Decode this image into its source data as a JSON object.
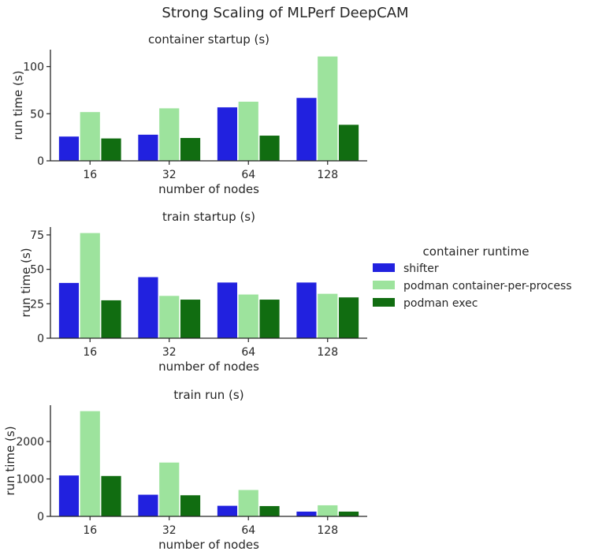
{
  "suptitle": "Strong Scaling of MLPerf DeepCAM",
  "legend": {
    "title": "container runtime",
    "placement": "right",
    "entries": [
      "shifter",
      "podman container-per-process",
      "podman exec"
    ]
  },
  "colors": {
    "shifter": "#2121df",
    "podman container-per-process": "#9de39d",
    "podman exec": "#116d11"
  },
  "chart_data": [
    {
      "type": "bar",
      "title": "container startup (s)",
      "xlabel": "number of nodes",
      "ylabel": "run time (s)",
      "categories": [
        "16",
        "32",
        "64",
        "128"
      ],
      "ylim": [
        0,
        118
      ],
      "yticks": [
        0,
        50,
        100
      ],
      "grid": false,
      "series": [
        {
          "name": "shifter",
          "values": [
            26,
            28,
            57,
            67
          ]
        },
        {
          "name": "podman container-per-process",
          "values": [
            52,
            56,
            63,
            111
          ]
        },
        {
          "name": "podman exec",
          "values": [
            24,
            24.5,
            27,
            38.5
          ]
        }
      ]
    },
    {
      "type": "bar",
      "title": "train startup (s)",
      "xlabel": "number of nodes",
      "ylabel": "run time (s)",
      "categories": [
        "16",
        "32",
        "64",
        "128"
      ],
      "ylim": [
        0,
        80.7
      ],
      "yticks": [
        0,
        25,
        50,
        75
      ],
      "grid": false,
      "series": [
        {
          "name": "shifter",
          "values": [
            40.3,
            44.5,
            40.6,
            40.6
          ]
        },
        {
          "name": "podman container-per-process",
          "values": [
            76.5,
            30.9,
            31.9,
            32.4
          ]
        },
        {
          "name": "podman exec",
          "values": [
            27.7,
            28.2,
            28.2,
            29.8
          ]
        }
      ]
    },
    {
      "type": "bar",
      "title": "train run (s)",
      "xlabel": "number of nodes",
      "ylabel": "run time (s)",
      "categories": [
        "16",
        "32",
        "64",
        "128"
      ],
      "ylim": [
        0,
        2970
      ],
      "yticks": [
        0,
        1000,
        2000
      ],
      "grid": false,
      "series": [
        {
          "name": "shifter",
          "values": [
            1099,
            585,
            289,
            134
          ]
        },
        {
          "name": "podman container-per-process",
          "values": [
            2817,
            1444,
            711,
            303
          ]
        },
        {
          "name": "podman exec",
          "values": [
            1085,
            570,
            282,
            134
          ]
        }
      ]
    }
  ]
}
